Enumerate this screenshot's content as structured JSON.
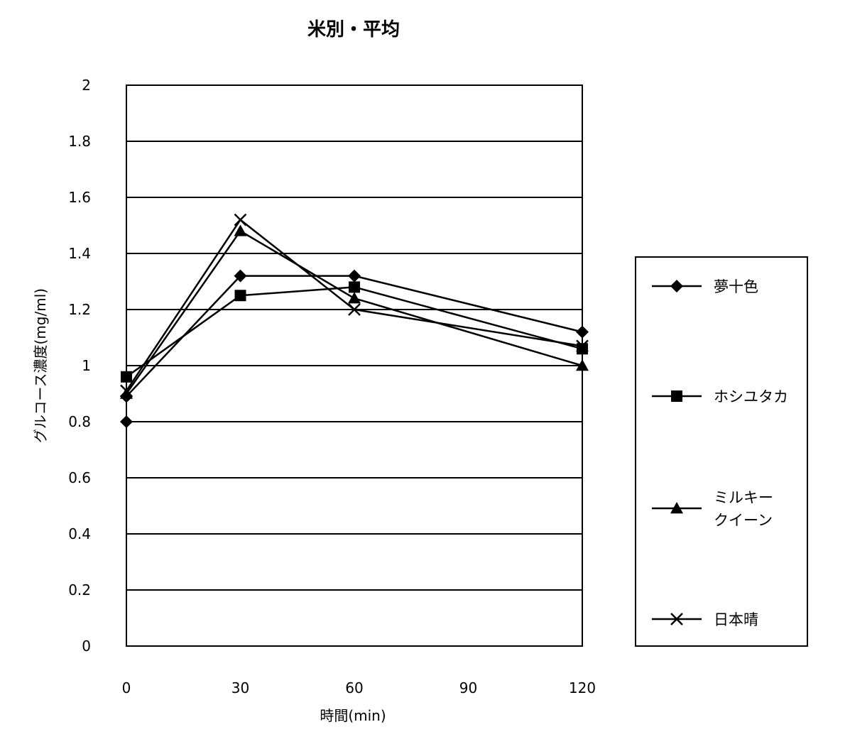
{
  "chart_data": {
    "type": "line",
    "title": "米別・平均",
    "xlabel": "時間(min)",
    "ylabel": "グルコース濃度(mg/ml)",
    "x": [
      0,
      30,
      60,
      90,
      120
    ],
    "x_ticks": [
      "0",
      "30",
      "60",
      "90",
      "120"
    ],
    "ylim": [
      0,
      2
    ],
    "y_ticks": [
      "0",
      "0.2",
      "0.4",
      "0.6",
      "0.8",
      "1",
      "1.2",
      "1.4",
      "1.6",
      "1.8",
      "2"
    ],
    "grid": true,
    "legend_position": "right",
    "series": [
      {
        "name": "夢十色",
        "marker": "diamond",
        "x": [
          0,
          30,
          60,
          120
        ],
        "values": [
          0.89,
          1.32,
          1.32,
          1.12
        ]
      },
      {
        "name": "ホシユタカ",
        "marker": "square",
        "x": [
          0,
          30,
          60,
          120
        ],
        "values": [
          0.96,
          1.25,
          1.28,
          1.06
        ]
      },
      {
        "name": "ミルキークイーン",
        "legend_lines": [
          "ミルキー",
          "クイーン"
        ],
        "marker": "triangle",
        "x": [
          0,
          30,
          60,
          120
        ],
        "values": [
          0.9,
          1.48,
          1.24,
          1.0
        ]
      },
      {
        "name": "日本晴",
        "marker": "x",
        "x": [
          0,
          30,
          60,
          120
        ],
        "values": [
          0.91,
          1.52,
          1.2,
          1.07
        ]
      }
    ],
    "extra_points": [
      {
        "series": "夢十色",
        "x": 0,
        "value": 0.8,
        "marker": "diamond"
      }
    ]
  }
}
